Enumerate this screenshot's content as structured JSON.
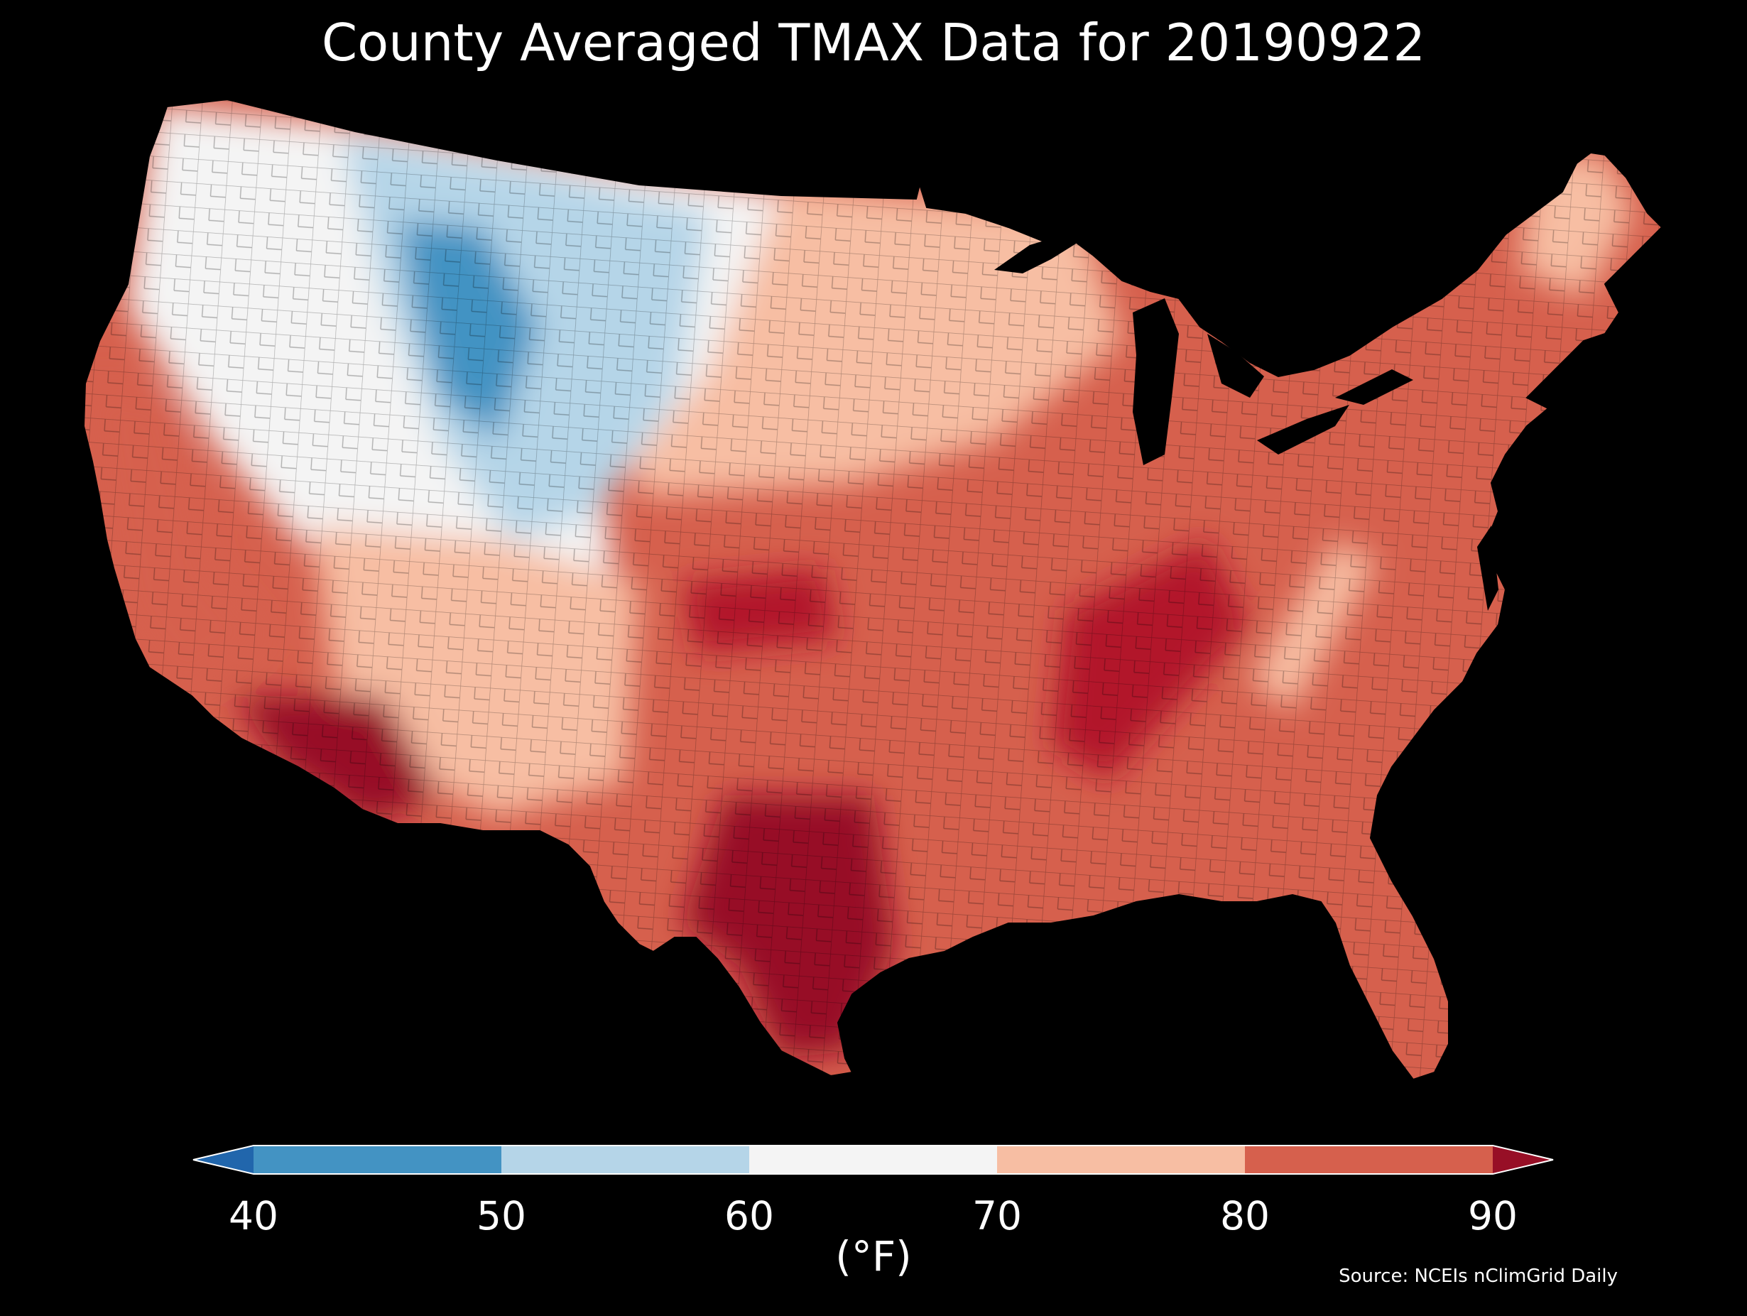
{
  "title": "County Averaged TMAX Data for 20190922",
  "colorbar": {
    "ticks": [
      "40",
      "50",
      "60",
      "70",
      "80",
      "90"
    ],
    "unit": "(°F)",
    "bins": [
      {
        "range": "<40",
        "color": "#2166ac"
      },
      {
        "range": "40-50",
        "color": "#4393c3"
      },
      {
        "range": "50-60",
        "color": "#b5d5e8"
      },
      {
        "range": "60-70",
        "color": "#f4f4f4"
      },
      {
        "range": "70-80",
        "color": "#f7bea3"
      },
      {
        "range": "80-90",
        "color": "#d6604d"
      },
      {
        "range": ">90",
        "color": "#970f26"
      }
    ]
  },
  "source": "Source: NCEIs nClimGrid Daily",
  "map_regions": [
    {
      "region": "pacific-northwest-interior",
      "bin": "60-70"
    },
    {
      "region": "northern-rockies",
      "bin": "50-60"
    },
    {
      "region": "wyoming-core",
      "bin": "40-50"
    },
    {
      "region": "great-basin",
      "bin": "60-70"
    },
    {
      "region": "northern-plains",
      "bin": "70-80"
    },
    {
      "region": "california-coast",
      "bin": "80-90"
    },
    {
      "region": "desert-southwest",
      "bin": ">90"
    },
    {
      "region": "southern-plains",
      "bin": "80-90"
    },
    {
      "region": "texas",
      "bin": ">90"
    },
    {
      "region": "southeast",
      "bin": "80-90"
    },
    {
      "region": "appalachians",
      "bin": "70-80"
    },
    {
      "region": "northeast",
      "bin": "70-80"
    }
  ]
}
